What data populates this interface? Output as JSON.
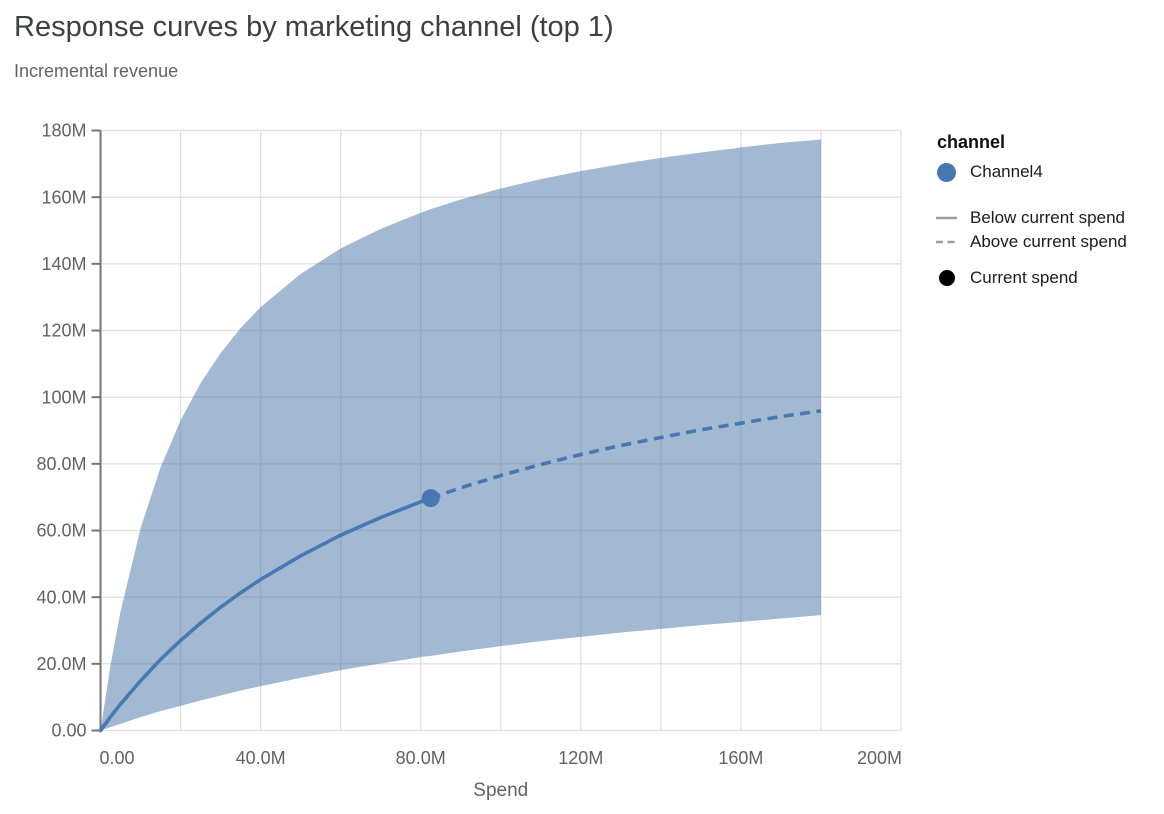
{
  "header": {
    "title": "Response curves by marketing channel (top 1)",
    "subtitle": "Incremental revenue"
  },
  "legend": {
    "title": "channel",
    "channel_label": "Channel4",
    "below_label": "Below current spend",
    "above_label": "Above current spend",
    "current_label": "Current spend"
  },
  "colors": {
    "line": "#4878b2",
    "band": "rgba(72,114,167,0.5)",
    "legend_swatch_gray": "#9e9e9e",
    "legend_current_dot": "#000000",
    "grid": "#e0e0e0",
    "y_axis_line": "#757575",
    "axis_label": "#5f6368",
    "title_text": "#3c4043",
    "subtitle_text": "#5f6368"
  },
  "chart_data": {
    "type": "line",
    "title": "Response curves by marketing channel (top 1)",
    "subtitle": "Incremental revenue",
    "xlabel": "Spend",
    "ylabel": "Incremental revenue",
    "units": "millions",
    "channel": "Channel4",
    "xlim": [
      0,
      200
    ],
    "ylim": [
      0,
      180
    ],
    "grid": "on",
    "legend_position": "right",
    "x_ticks": [
      {
        "value": 0,
        "label": "0.00"
      },
      {
        "value": 20,
        "label": ""
      },
      {
        "value": 40,
        "label": "40.0M"
      },
      {
        "value": 60,
        "label": ""
      },
      {
        "value": 80,
        "label": "80.0M"
      },
      {
        "value": 100,
        "label": ""
      },
      {
        "value": 120,
        "label": "120M"
      },
      {
        "value": 140,
        "label": ""
      },
      {
        "value": 160,
        "label": "160M"
      },
      {
        "value": 180,
        "label": ""
      },
      {
        "value": 200,
        "label": "200M"
      }
    ],
    "y_ticks": [
      {
        "value": 0,
        "label": "0.00"
      },
      {
        "value": 20,
        "label": "20.0M"
      },
      {
        "value": 40,
        "label": "40.0M"
      },
      {
        "value": 60,
        "label": "60.0M"
      },
      {
        "value": 80,
        "label": "80.0M"
      },
      {
        "value": 100,
        "label": "100M"
      },
      {
        "value": 120,
        "label": "120M"
      },
      {
        "value": 140,
        "label": "140M"
      },
      {
        "value": 160,
        "label": "160M"
      },
      {
        "value": 180,
        "label": "180M"
      }
    ],
    "spend": [
      0,
      2.5,
      5,
      10,
      15,
      20,
      25,
      30,
      35,
      40,
      50,
      60,
      70,
      80,
      82.5,
      90,
      100,
      110,
      120,
      130,
      140,
      150,
      160,
      170,
      180
    ],
    "series": [
      {
        "name": "mean response",
        "values": [
          0,
          4.1,
          7.9,
          14.9,
          21.3,
          27.0,
          32.2,
          37.0,
          41.3,
          45.3,
          52.4,
          58.6,
          63.9,
          68.6,
          69.7,
          72.8,
          76.5,
          79.8,
          82.8,
          85.5,
          87.9,
          90.2,
          92.2,
          94.2,
          95.9
        ]
      },
      {
        "name": "upper credible bound",
        "values": [
          0,
          19.6,
          35.7,
          60.6,
          78.9,
          93.0,
          104.2,
          113.2,
          120.7,
          127.0,
          137.0,
          144.6,
          150.5,
          155.3,
          156.4,
          159.3,
          162.6,
          165.4,
          167.8,
          169.9,
          171.8,
          173.4,
          174.9,
          176.3,
          177.3
        ]
      },
      {
        "name": "lower credible bound",
        "values": [
          0,
          1.0,
          2.0,
          4.0,
          5.8,
          7.4,
          9.0,
          10.5,
          12.0,
          13.3,
          15.8,
          18.1,
          20.1,
          22.0,
          22.4,
          23.7,
          25.3,
          26.8,
          28.1,
          29.4,
          30.5,
          31.6,
          32.6,
          33.6,
          34.6
        ]
      }
    ],
    "current_spend_point": {
      "spend": 82.5,
      "incremental_revenue": 69.7
    }
  }
}
